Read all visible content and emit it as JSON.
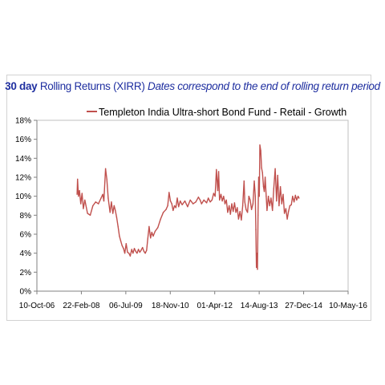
{
  "chart_data": {
    "type": "line",
    "title": {
      "bold": "30 day",
      "regular": "Rolling Returns (XIRR)",
      "italic": "Dates correspond to the end of rolling return period"
    },
    "xlabel": "",
    "ylabel": "",
    "legend": {
      "placement": "top-center"
    },
    "grid": false,
    "x_axis": {
      "type": "date",
      "range": [
        "2006-10-10",
        "2016-05-10"
      ],
      "ticks": [
        "10-Oct-06",
        "22-Feb-08",
        "06-Jul-09",
        "18-Nov-10",
        "01-Apr-12",
        "14-Aug-13",
        "27-Dec-14",
        "10-May-16"
      ]
    },
    "y_axis": {
      "range": [
        0,
        18
      ],
      "unit": "%",
      "ticks": [
        "0%",
        "2%",
        "4%",
        "6%",
        "8%",
        "10%",
        "12%",
        "14%",
        "16%",
        "18%"
      ]
    },
    "series": [
      {
        "name": "Templeton India Ultra-short Bond Fund - Retail - Growth",
        "color": "#c0504d",
        "points": [
          [
            "2008-01-05",
            10.2
          ],
          [
            "2008-01-10",
            11.8
          ],
          [
            "2008-01-20",
            10.0
          ],
          [
            "2008-02-01",
            10.6
          ],
          [
            "2008-02-15",
            9.2
          ],
          [
            "2008-03-01",
            10.3
          ],
          [
            "2008-03-15",
            8.7
          ],
          [
            "2008-04-01",
            9.6
          ],
          [
            "2008-05-01",
            8.2
          ],
          [
            "2008-06-01",
            8.0
          ],
          [
            "2008-07-01",
            9.0
          ],
          [
            "2008-08-01",
            9.4
          ],
          [
            "2008-09-01",
            9.2
          ],
          [
            "2008-10-01",
            9.8
          ],
          [
            "2008-10-20",
            10.2
          ],
          [
            "2008-11-01",
            9.5
          ],
          [
            "2008-11-20",
            12.9
          ],
          [
            "2008-12-05",
            11.8
          ],
          [
            "2008-12-20",
            9.8
          ],
          [
            "2009-01-10",
            8.3
          ],
          [
            "2009-01-25",
            9.4
          ],
          [
            "2009-02-10",
            8.2
          ],
          [
            "2009-02-25",
            9.0
          ],
          [
            "2009-03-10",
            8.5
          ],
          [
            "2009-03-25",
            7.8
          ],
          [
            "2009-04-10",
            6.8
          ],
          [
            "2009-04-25",
            5.8
          ],
          [
            "2009-05-10",
            5.3
          ],
          [
            "2009-05-25",
            4.8
          ],
          [
            "2009-06-10",
            4.5
          ],
          [
            "2009-06-25",
            4.0
          ],
          [
            "2009-07-10",
            5.0
          ],
          [
            "2009-07-25",
            4.1
          ],
          [
            "2009-08-10",
            4.0
          ],
          [
            "2009-08-25",
            3.7
          ],
          [
            "2009-09-10",
            4.4
          ],
          [
            "2009-09-25",
            4.0
          ],
          [
            "2009-10-10",
            4.5
          ],
          [
            "2009-10-25",
            4.2
          ],
          [
            "2009-11-10",
            4.0
          ],
          [
            "2009-11-25",
            4.4
          ],
          [
            "2009-12-10",
            4.1
          ],
          [
            "2009-12-25",
            4.3
          ],
          [
            "2010-01-10",
            4.6
          ],
          [
            "2010-01-25",
            4.2
          ],
          [
            "2010-02-10",
            4.0
          ],
          [
            "2010-02-25",
            4.3
          ],
          [
            "2010-03-10",
            5.5
          ],
          [
            "2010-03-25",
            6.8
          ],
          [
            "2010-04-10",
            5.6
          ],
          [
            "2010-04-25",
            6.2
          ],
          [
            "2010-05-10",
            5.8
          ],
          [
            "2010-06-01",
            6.3
          ],
          [
            "2010-07-01",
            6.7
          ],
          [
            "2010-08-01",
            7.6
          ],
          [
            "2010-09-01",
            8.3
          ],
          [
            "2010-10-01",
            8.6
          ],
          [
            "2010-10-20",
            9.0
          ],
          [
            "2010-11-05",
            10.4
          ],
          [
            "2010-11-20",
            9.5
          ],
          [
            "2010-12-05",
            9.2
          ],
          [
            "2010-12-20",
            8.5
          ],
          [
            "2011-01-05",
            9.0
          ],
          [
            "2011-01-20",
            8.8
          ],
          [
            "2011-02-05",
            9.8
          ],
          [
            "2011-02-20",
            8.9
          ],
          [
            "2011-03-10",
            9.5
          ],
          [
            "2011-04-01",
            9.1
          ],
          [
            "2011-05-01",
            9.5
          ],
          [
            "2011-06-01",
            8.9
          ],
          [
            "2011-07-01",
            9.6
          ],
          [
            "2011-08-01",
            9.2
          ],
          [
            "2011-09-01",
            9.4
          ],
          [
            "2011-10-01",
            9.9
          ],
          [
            "2011-10-20",
            9.6
          ],
          [
            "2011-11-05",
            9.2
          ],
          [
            "2011-12-01",
            9.6
          ],
          [
            "2012-01-01",
            9.3
          ],
          [
            "2012-01-20",
            9.8
          ],
          [
            "2012-02-10",
            9.4
          ],
          [
            "2012-03-01",
            9.6
          ],
          [
            "2012-03-20",
            10.3
          ],
          [
            "2012-04-05",
            10.0
          ],
          [
            "2012-04-20",
            12.8
          ],
          [
            "2012-05-05",
            10.6
          ],
          [
            "2012-05-15",
            12.6
          ],
          [
            "2012-05-25",
            9.6
          ],
          [
            "2012-06-10",
            10.2
          ],
          [
            "2012-06-25",
            9.5
          ],
          [
            "2012-07-10",
            10.0
          ],
          [
            "2012-07-25",
            9.2
          ],
          [
            "2012-08-10",
            9.6
          ],
          [
            "2012-08-25",
            8.3
          ],
          [
            "2012-09-10",
            9.0
          ],
          [
            "2012-09-25",
            8.1
          ],
          [
            "2012-10-10",
            9.2
          ],
          [
            "2012-10-25",
            8.4
          ],
          [
            "2012-11-10",
            9.3
          ],
          [
            "2012-11-25",
            8.3
          ],
          [
            "2012-12-10",
            8.8
          ],
          [
            "2012-12-25",
            7.6
          ],
          [
            "2013-01-10",
            8.4
          ],
          [
            "2013-01-25",
            7.5
          ],
          [
            "2013-02-10",
            9.0
          ],
          [
            "2013-02-25",
            11.6
          ],
          [
            "2013-03-05",
            9.4
          ],
          [
            "2013-03-20",
            8.6
          ],
          [
            "2013-04-05",
            8.3
          ],
          [
            "2013-04-20",
            10.0
          ],
          [
            "2013-05-05",
            9.6
          ],
          [
            "2013-05-20",
            8.6
          ],
          [
            "2013-06-05",
            9.2
          ],
          [
            "2013-06-20",
            11.6
          ],
          [
            "2013-07-01",
            10.0
          ],
          [
            "2013-07-08",
            6.5
          ],
          [
            "2013-07-14",
            2.5
          ],
          [
            "2013-07-20",
            4.0
          ],
          [
            "2013-07-26",
            2.3
          ],
          [
            "2013-08-01",
            8.0
          ],
          [
            "2013-08-08",
            12.0
          ],
          [
            "2013-08-15",
            10.0
          ],
          [
            "2013-08-22",
            15.4
          ],
          [
            "2013-09-01",
            14.8
          ],
          [
            "2013-09-10",
            13.0
          ],
          [
            "2013-09-20",
            12.5
          ],
          [
            "2013-10-01",
            11.0
          ],
          [
            "2013-10-10",
            10.5
          ],
          [
            "2013-10-20",
            12.0
          ],
          [
            "2013-11-01",
            10.0
          ],
          [
            "2013-11-10",
            8.5
          ],
          [
            "2013-11-25",
            10.0
          ],
          [
            "2013-12-10",
            9.0
          ],
          [
            "2013-12-25",
            9.8
          ],
          [
            "2014-01-10",
            8.5
          ],
          [
            "2014-01-25",
            10.8
          ],
          [
            "2014-02-10",
            12.9
          ],
          [
            "2014-02-25",
            9.5
          ],
          [
            "2014-03-10",
            12.2
          ],
          [
            "2014-03-25",
            9.0
          ],
          [
            "2014-04-10",
            11.0
          ],
          [
            "2014-04-25",
            9.2
          ],
          [
            "2014-05-10",
            10.2
          ],
          [
            "2014-05-25",
            8.2
          ],
          [
            "2014-06-10",
            8.7
          ],
          [
            "2014-06-25",
            7.6
          ],
          [
            "2014-07-10",
            8.4
          ],
          [
            "2014-07-25",
            9.0
          ],
          [
            "2014-08-10",
            9.1
          ],
          [
            "2014-08-25",
            10.0
          ],
          [
            "2014-09-10",
            9.4
          ],
          [
            "2014-09-25",
            10.1
          ],
          [
            "2014-10-10",
            9.6
          ],
          [
            "2014-10-25",
            10.0
          ],
          [
            "2014-11-05",
            9.8
          ]
        ]
      }
    ]
  }
}
